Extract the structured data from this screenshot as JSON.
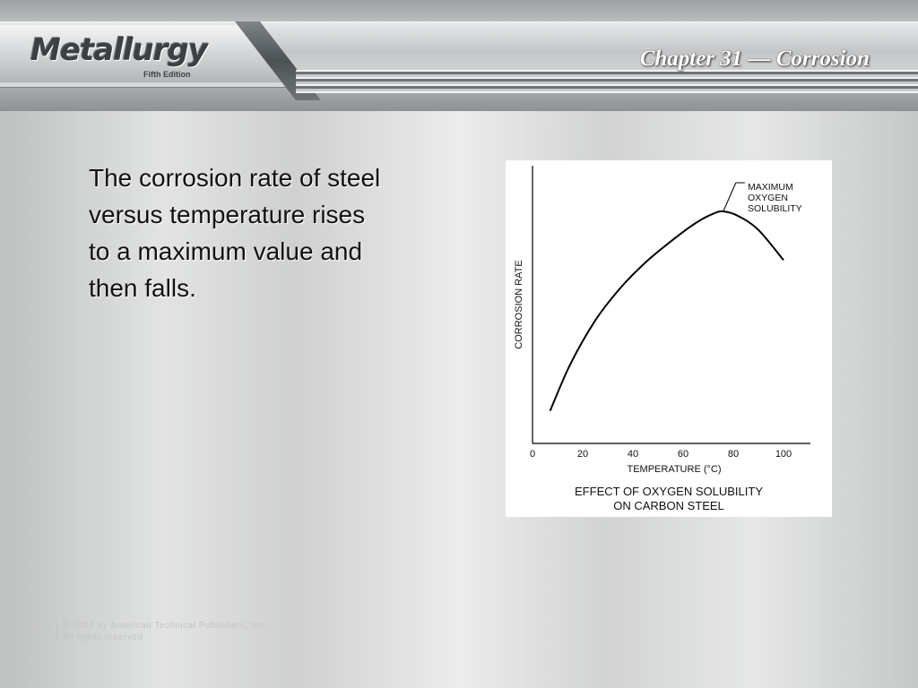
{
  "header": {
    "logo": "Metallurgy",
    "edition": "Fifth Edition",
    "chapter_title": "Chapter 31 — Corrosion"
  },
  "main": {
    "body_text": "The corrosion rate of steel versus temperature rises to a maximum value and then falls."
  },
  "footer": {
    "publisher_logo": "atp",
    "copyright_line1": "© 2012 by American Technical Publishers, Inc.",
    "copyright_line2": "All rights reserved"
  },
  "chart_data": {
    "type": "line",
    "title": "EFFECT OF OXYGEN SOLUBILITY ON CARBON STEEL",
    "title_lines": [
      "EFFECT OF OXYGEN SOLUBILITY",
      "ON CARBON STEEL"
    ],
    "xlabel": "TEMPERATURE (°C)",
    "ylabel": "CORROSION RATE",
    "xlim": [
      0,
      110
    ],
    "ylim": [
      0,
      1
    ],
    "x_ticks": [
      0,
      20,
      40,
      60,
      80,
      100
    ],
    "y_ticks": [],
    "grid": false,
    "series": [
      {
        "x": [
          7,
          15,
          25,
          35,
          45,
          55,
          65,
          72,
          76,
          82,
          90,
          100
        ],
        "values": [
          0.14,
          0.34,
          0.53,
          0.67,
          0.78,
          0.87,
          0.95,
          0.99,
          1.0,
          0.98,
          0.92,
          0.79
        ]
      }
    ],
    "annotations": [
      {
        "text_lines": [
          "MAXIMUM",
          "OXYGEN",
          "SOLUBILITY"
        ],
        "x": 76,
        "y": 1.0
      }
    ],
    "colors": {
      "line": "#000000",
      "background": "#ffffff"
    }
  }
}
